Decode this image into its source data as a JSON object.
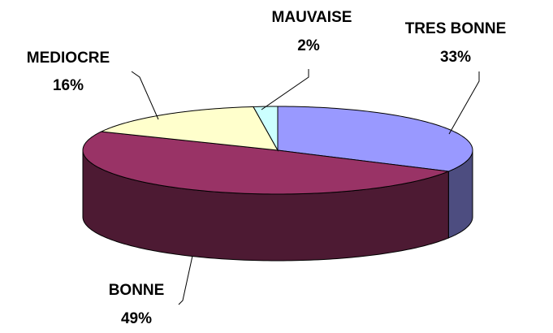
{
  "chart_data": {
    "type": "pie3d",
    "categories": [
      "TRES BONNE",
      "BONNE",
      "MEDIOCRE",
      "MAUVAISE"
    ],
    "values": [
      33,
      49,
      16,
      2
    ],
    "value_labels": [
      "33%",
      "49%",
      "16%",
      "2%"
    ],
    "colors": [
      "#9999ff",
      "#993366",
      "#ffffcc",
      "#ccffff"
    ]
  }
}
